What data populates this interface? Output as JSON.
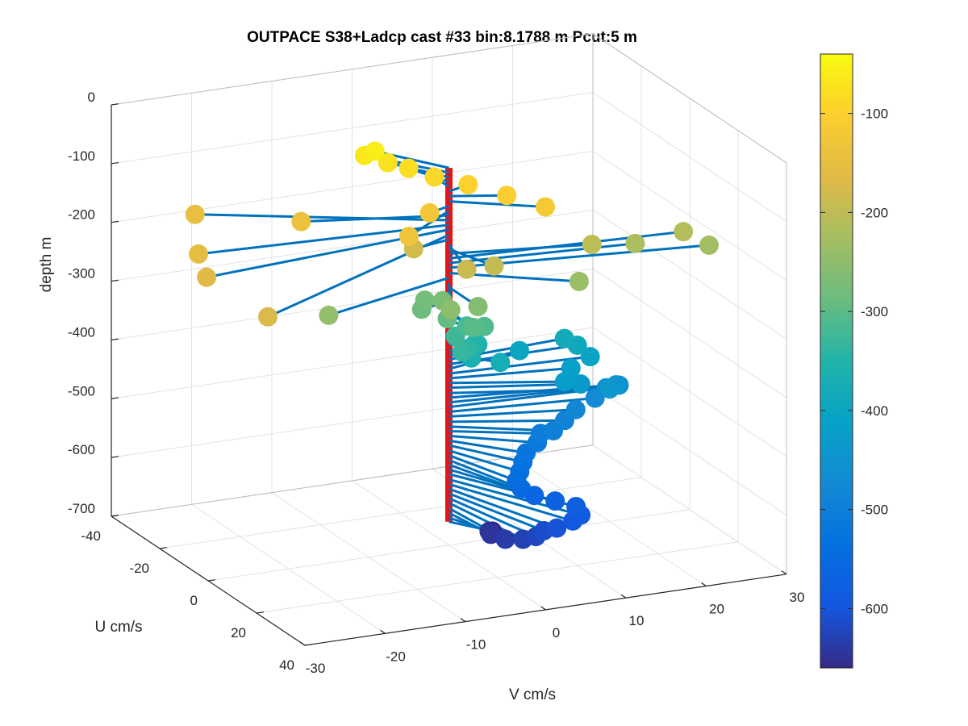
{
  "chart_data": {
    "type": "scatter",
    "title": "OUTPACE S38+Ladcp cast #33 bin:8.1788 m  Pcut:5 m",
    "zlabel": "depth m",
    "ulabel": "U cm/s",
    "vlabel": "V cm/s",
    "zlim": [
      -700,
      0
    ],
    "ulim": [
      -40,
      40
    ],
    "vlim": [
      -30,
      30
    ],
    "ztick_labels": [
      "0",
      "-100",
      "-200",
      "-300",
      "-400",
      "-500",
      "-600",
      "-700"
    ],
    "utick_labels": [
      "-40",
      "-20",
      "0",
      "20",
      "40"
    ],
    "vtick_labels": [
      "-30",
      "-20",
      "-10",
      "0",
      "10",
      "20",
      "30"
    ],
    "colorbar": {
      "colormap": "parula",
      "range": [
        -660,
        -40
      ],
      "tick_labels": [
        "-100",
        "-200",
        "-300",
        "-400",
        "-500",
        "-600"
      ]
    },
    "grid": true,
    "axis_line": {
      "color": "#ee1111",
      "label": ""
    },
    "stick_color": "#0072bd",
    "points": [
      {
        "z": -58,
        "u": -14,
        "v": -5
      },
      {
        "z": -66,
        "u": -15,
        "v": -6
      },
      {
        "z": -74,
        "u": -12,
        "v": -4
      },
      {
        "z": -82,
        "u": -10,
        "v": -2
      },
      {
        "z": -90,
        "u": -6,
        "v": 0
      },
      {
        "z": -98,
        "u": -2,
        "v": 3
      },
      {
        "z": -106,
        "u": 4,
        "v": 6
      },
      {
        "z": -115,
        "u": 10,
        "v": 9
      },
      {
        "z": -123,
        "u": 2,
        "v": -3
      },
      {
        "z": -131,
        "u": 10,
        "v": -8
      },
      {
        "z": -139,
        "u": -8,
        "v": -16
      },
      {
        "z": -147,
        "u": -22,
        "v": -25
      },
      {
        "z": -155,
        "u": -4,
        "v": -30
      },
      {
        "z": -163,
        "u": 6,
        "v": -32
      },
      {
        "z": -172,
        "u": 28,
        "v": -31
      },
      {
        "z": -180,
        "u": 2,
        "v": -5
      },
      {
        "z": -188,
        "u": 14,
        "v": -2
      },
      {
        "z": -196,
        "u": 12,
        "v": 2
      },
      {
        "z": -204,
        "u": 6,
        "v": 16
      },
      {
        "z": -212,
        "u": 4,
        "v": 28
      },
      {
        "z": -220,
        "u": 4,
        "v": 22
      },
      {
        "z": -228,
        "u": 8,
        "v": 30
      },
      {
        "z": -237,
        "u": 14,
        "v": 12
      },
      {
        "z": -245,
        "u": 10,
        "v": -18
      },
      {
        "z": -253,
        "u": 14,
        "v": -4
      },
      {
        "z": -261,
        "u": 12,
        "v": 0
      },
      {
        "z": -269,
        "u": 4,
        "v": -2
      },
      {
        "z": -277,
        "u": 0,
        "v": -3
      },
      {
        "z": -285,
        "u": 2,
        "v": -4
      },
      {
        "z": -294,
        "u": 6,
        "v": -2
      },
      {
        "z": -302,
        "u": 10,
        "v": 0
      },
      {
        "z": -310,
        "u": 8,
        "v": 2
      },
      {
        "z": -318,
        "u": 4,
        "v": 1
      },
      {
        "z": -326,
        "u": 6,
        "v": -1
      },
      {
        "z": -334,
        "u": 12,
        "v": -2
      },
      {
        "z": -343,
        "u": 8,
        "v": 0
      },
      {
        "z": -351,
        "u": 4,
        "v": 2
      },
      {
        "z": -359,
        "u": 2,
        "v": 3
      },
      {
        "z": -367,
        "u": 6,
        "v": 1
      },
      {
        "z": -375,
        "u": 8,
        "v": 4
      },
      {
        "z": -384,
        "u": -2,
        "v": 15
      },
      {
        "z": -392,
        "u": 0,
        "v": 16
      },
      {
        "z": -400,
        "u": -4,
        "v": 10
      },
      {
        "z": -408,
        "u": 2,
        "v": 17
      },
      {
        "z": -416,
        "u": 4,
        "v": 14
      },
      {
        "z": -424,
        "u": 8,
        "v": 12
      },
      {
        "z": -432,
        "u": 8,
        "v": 14
      },
      {
        "z": -441,
        "u": 10,
        "v": 17
      },
      {
        "z": -449,
        "u": 6,
        "v": 19
      },
      {
        "z": -457,
        "u": 4,
        "v": 20
      },
      {
        "z": -465,
        "u": 2,
        "v": 19
      },
      {
        "z": -473,
        "u": 4,
        "v": 17
      },
      {
        "z": -481,
        "u": 6,
        "v": 14
      },
      {
        "z": -490,
        "u": 8,
        "v": 12
      },
      {
        "z": -498,
        "u": 10,
        "v": 10
      },
      {
        "z": -506,
        "u": 8,
        "v": 9
      },
      {
        "z": -514,
        "u": 10,
        "v": 8
      },
      {
        "z": -522,
        "u": 12,
        "v": 6
      },
      {
        "z": -530,
        "u": 14,
        "v": 5
      },
      {
        "z": -539,
        "u": 16,
        "v": 4
      },
      {
        "z": -547,
        "u": 18,
        "v": 3
      },
      {
        "z": -555,
        "u": 20,
        "v": 3
      },
      {
        "z": -563,
        "u": 22,
        "v": 4
      },
      {
        "z": -571,
        "u": 24,
        "v": 6
      },
      {
        "z": -579,
        "u": 26,
        "v": 8
      },
      {
        "z": -588,
        "u": 28,
        "v": 8
      },
      {
        "z": -596,
        "u": 28,
        "v": 7
      },
      {
        "z": -604,
        "u": 28,
        "v": 5
      },
      {
        "z": -612,
        "u": 26,
        "v": 4
      },
      {
        "z": -620,
        "u": 26,
        "v": 3
      },
      {
        "z": -628,
        "u": 24,
        "v": 2
      },
      {
        "z": -637,
        "u": 20,
        "v": 1
      },
      {
        "z": -645,
        "u": 14,
        "v": 1
      },
      {
        "z": -653,
        "u": 10,
        "v": 2
      },
      {
        "z": -660,
        "u": 8,
        "v": 3
      }
    ]
  }
}
